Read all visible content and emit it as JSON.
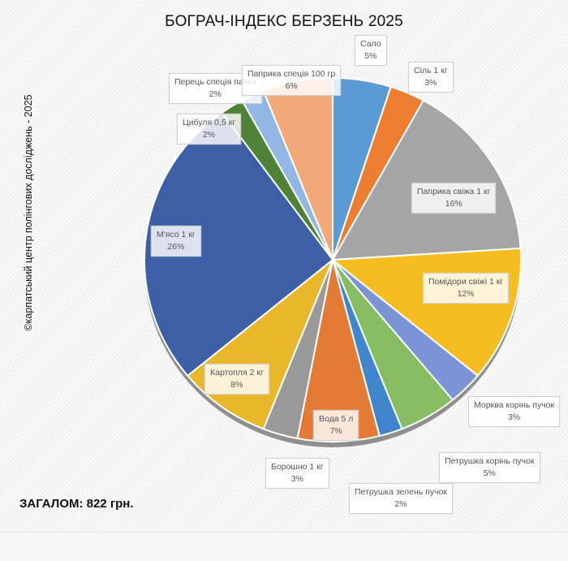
{
  "chart_data": {
    "type": "pie",
    "title": "БОГРАЧ-ІНДЕКС БЕРЗЕНЬ 2025",
    "start_angle_deg": 0,
    "direction": "clockwise",
    "slices": [
      {
        "label": "Сало",
        "value": 5,
        "pct": "5%",
        "color": "#5b9bd5"
      },
      {
        "label": "Сіль 1 кг",
        "value": 3,
        "pct": "3%",
        "color": "#ed7d31"
      },
      {
        "label": "Паприка свіжа 1 кг",
        "value": 16,
        "pct": "16%",
        "color": "#a5a5a5"
      },
      {
        "label": "Помідори свіжі 1 кг",
        "value": 12,
        "pct": "12%",
        "color": "#f5bd1f"
      },
      {
        "label": "Морква корінь пучок",
        "value": 3,
        "pct": "3%",
        "color": "#7a94d6"
      },
      {
        "label": "Петрушка корінь пучок",
        "value": 5,
        "pct": "5%",
        "color": "#86bd63"
      },
      {
        "label": "Петрушка зелень пучок",
        "value": 2,
        "pct": "2%",
        "color": "#3f86cc"
      },
      {
        "label": "Вода 5 л",
        "value": 7,
        "pct": "7%",
        "color": "#e37b36"
      },
      {
        "label": "Борошно 1 кг",
        "value": 3,
        "pct": "3%",
        "color": "#999999"
      },
      {
        "label": "Картопля 2 кг",
        "value": 8,
        "pct": "8%",
        "color": "#e9b82a"
      },
      {
        "label": "М'ясо 1 кг",
        "value": 26,
        "pct": "26%",
        "color": "#3d5fa6"
      },
      {
        "label": "Цибуля 0,5 кг",
        "value": 2,
        "pct": "2%",
        "color": "#4f8236"
      },
      {
        "label": "Перець спеція пачка",
        "value": 2,
        "pct": "2%",
        "color": "#92b7e2"
      },
      {
        "label": "Паприка спеція 100 гр",
        "value": 6,
        "pct": "6%",
        "color": "#f2a97a"
      }
    ]
  },
  "side_text": "©карпатський центр полінгових досліджень - 2025",
  "total": "ЗАГАЛОМ: 822  грн."
}
